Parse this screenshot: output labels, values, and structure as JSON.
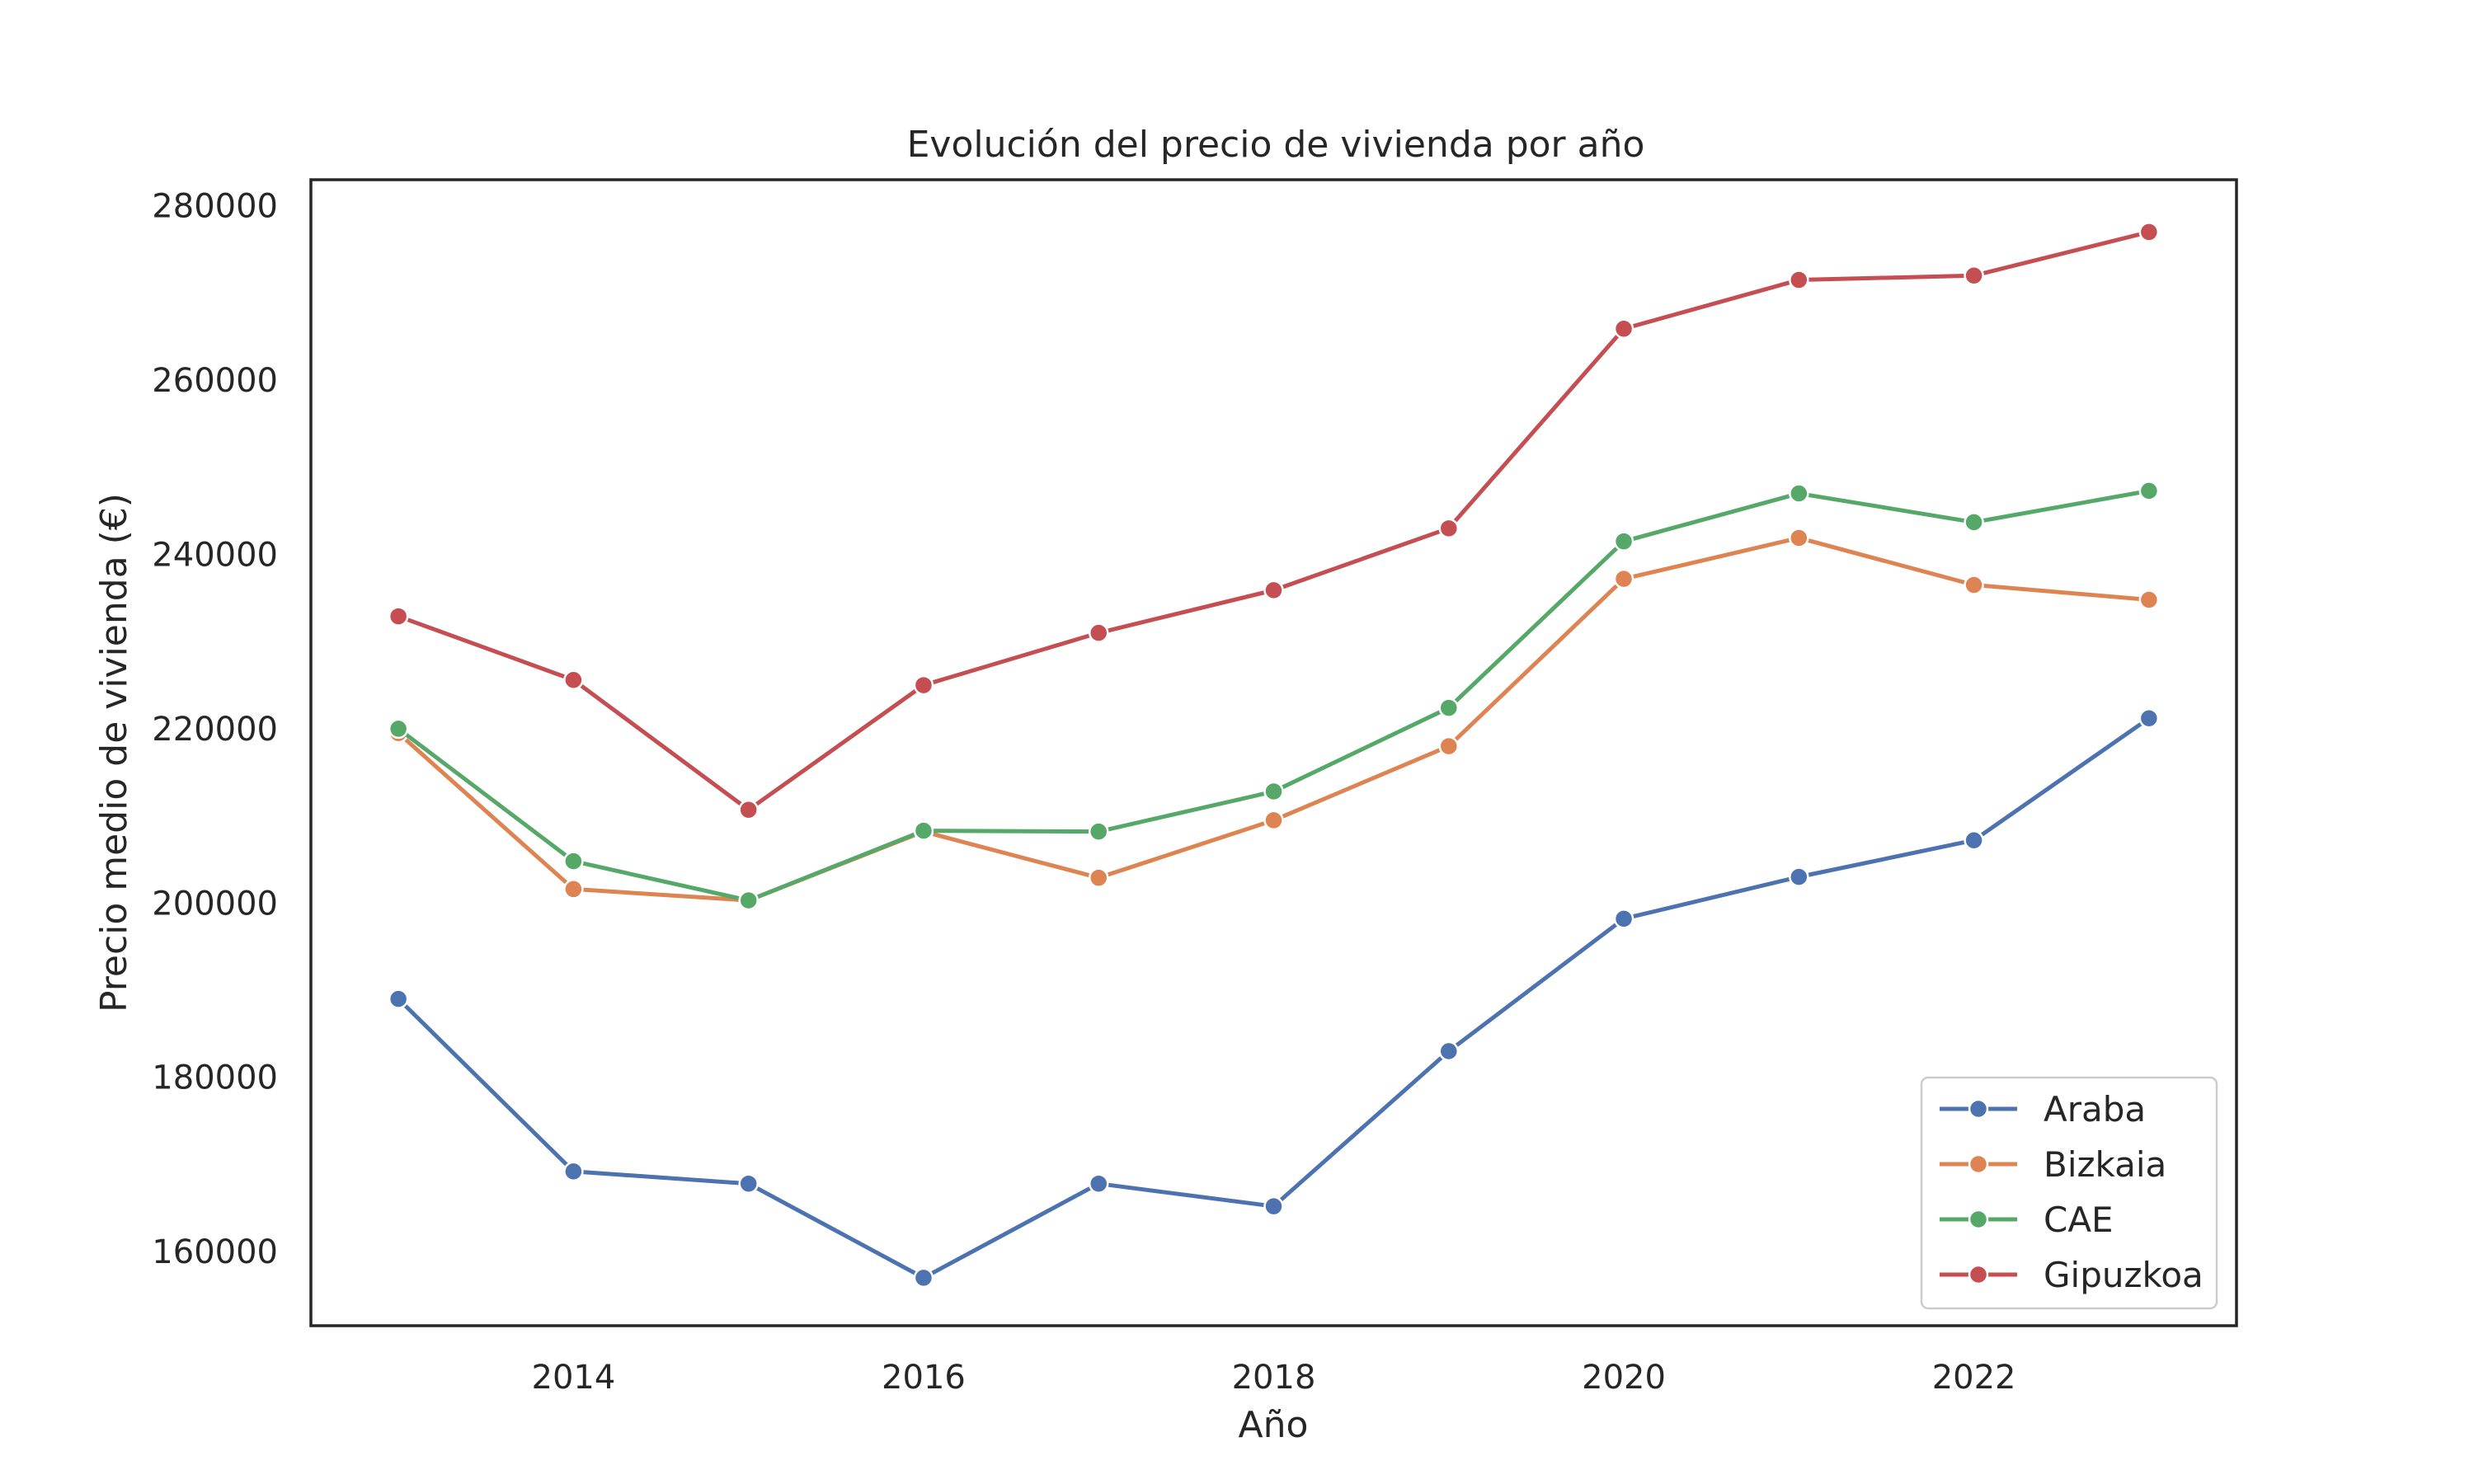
{
  "chart_data": {
    "type": "line",
    "title": "Evolución del precio de vivienda por año",
    "xlabel": "Año",
    "ylabel": "Precio medio de vivienda (€)",
    "x": [
      2013,
      2014,
      2015,
      2016,
      2017,
      2018,
      2019,
      2020,
      2021,
      2022,
      2023
    ],
    "xlim": [
      2012.5,
      2023.5
    ],
    "ylim": [
      151500,
      283000
    ],
    "xticks": [
      2014,
      2016,
      2018,
      2020,
      2022
    ],
    "yticks": [
      160000,
      180000,
      200000,
      220000,
      240000,
      260000,
      280000
    ],
    "grid": false,
    "legend_position": "bottom-right",
    "series": [
      {
        "name": "Araba",
        "color": "#4c72b0",
        "values": [
          189000,
          169200,
          167800,
          157000,
          167800,
          165200,
          183000,
          198200,
          203000,
          207200,
          221200
        ]
      },
      {
        "name": "Bizkaia",
        "color": "#dd8452",
        "values": [
          219500,
          201600,
          200300,
          208200,
          202900,
          209500,
          218000,
          237200,
          241900,
          236500,
          234800
        ]
      },
      {
        "name": "CAE",
        "color": "#55a868",
        "values": [
          220000,
          204800,
          200300,
          208300,
          208200,
          212800,
          222400,
          241500,
          247000,
          243700,
          247300
        ]
      },
      {
        "name": "Gipuzkoa",
        "color": "#c44e52",
        "values": [
          232900,
          225600,
          210700,
          225000,
          231000,
          235900,
          243000,
          265900,
          271500,
          272000,
          277000
        ]
      }
    ]
  }
}
